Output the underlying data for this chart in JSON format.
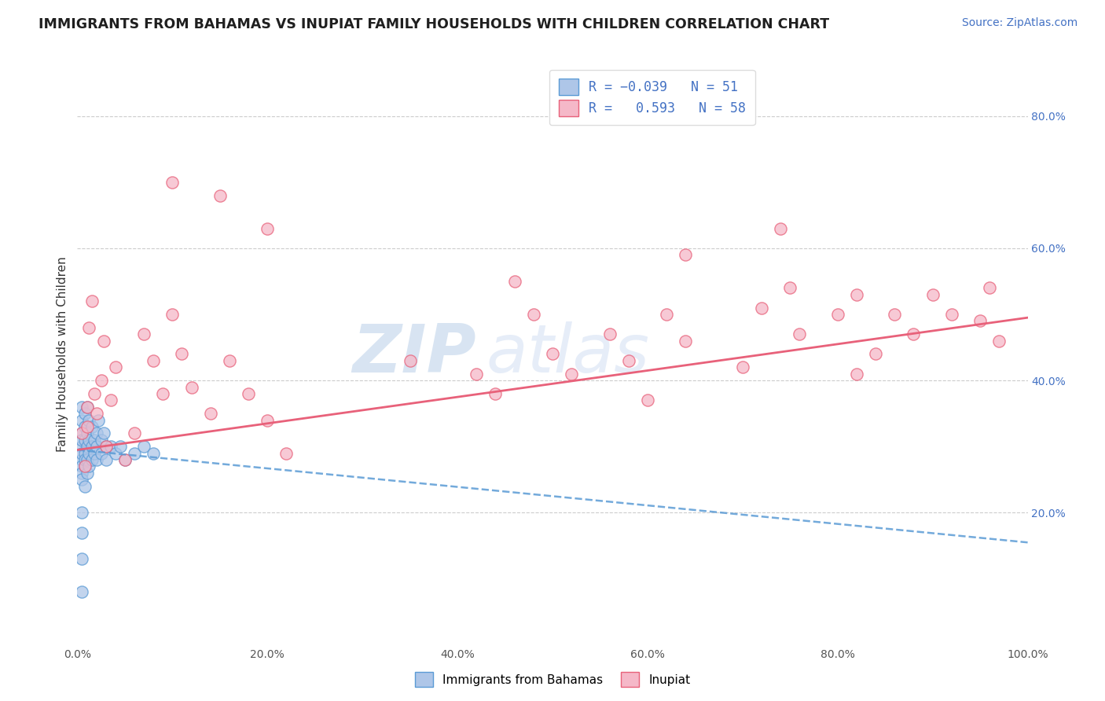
{
  "title": "IMMIGRANTS FROM BAHAMAS VS INUPIAT FAMILY HOUSEHOLDS WITH CHILDREN CORRELATION CHART",
  "source_text": "Source: ZipAtlas.com",
  "ylabel": "Family Households with Children",
  "xmin": 0.0,
  "xmax": 1.0,
  "ymin": 0.0,
  "ymax": 0.88,
  "xtick_labels": [
    "0.0%",
    "20.0%",
    "40.0%",
    "60.0%",
    "80.0%",
    "100.0%"
  ],
  "xtick_vals": [
    0.0,
    0.2,
    0.4,
    0.6,
    0.8,
    1.0
  ],
  "ytick_labels": [
    "20.0%",
    "40.0%",
    "60.0%",
    "80.0%"
  ],
  "ytick_vals": [
    0.2,
    0.4,
    0.6,
    0.8
  ],
  "watermark_zip": "ZIP",
  "watermark_atlas": "atlas",
  "series1_color": "#aec6e8",
  "series2_color": "#f5b8c8",
  "line1_color": "#5b9bd5",
  "line2_color": "#e8617a",
  "background_color": "#ffffff",
  "title_color": "#1f1f1f",
  "title_fontsize": 12.5,
  "source_fontsize": 10,
  "axis_label_fontsize": 11,
  "series1_x": [
    0.005,
    0.005,
    0.005,
    0.005,
    0.005,
    0.005,
    0.005,
    0.005,
    0.005,
    0.005,
    0.008,
    0.008,
    0.008,
    0.008,
    0.008,
    0.008,
    0.008,
    0.01,
    0.01,
    0.01,
    0.01,
    0.01,
    0.012,
    0.012,
    0.012,
    0.012,
    0.015,
    0.015,
    0.015,
    0.018,
    0.018,
    0.02,
    0.02,
    0.02,
    0.022,
    0.025,
    0.025,
    0.028,
    0.03,
    0.03,
    0.035,
    0.04,
    0.045,
    0.05,
    0.06,
    0.07,
    0.08,
    0.005,
    0.005,
    0.005,
    0.005
  ],
  "series1_y": [
    0.3,
    0.32,
    0.28,
    0.34,
    0.36,
    0.31,
    0.27,
    0.26,
    0.29,
    0.25,
    0.33,
    0.31,
    0.29,
    0.27,
    0.35,
    0.28,
    0.24,
    0.32,
    0.3,
    0.28,
    0.26,
    0.36,
    0.31,
    0.29,
    0.34,
    0.27,
    0.3,
    0.28,
    0.33,
    0.31,
    0.29,
    0.32,
    0.3,
    0.28,
    0.34,
    0.31,
    0.29,
    0.32,
    0.3,
    0.28,
    0.3,
    0.29,
    0.3,
    0.28,
    0.29,
    0.3,
    0.29,
    0.2,
    0.17,
    0.13,
    0.08
  ],
  "series2_x": [
    0.005,
    0.008,
    0.01,
    0.01,
    0.012,
    0.015,
    0.018,
    0.02,
    0.025,
    0.028,
    0.03,
    0.035,
    0.04,
    0.05,
    0.06,
    0.07,
    0.08,
    0.09,
    0.1,
    0.11,
    0.12,
    0.14,
    0.16,
    0.18,
    0.2,
    0.22,
    0.35,
    0.42,
    0.44,
    0.46,
    0.48,
    0.5,
    0.52,
    0.56,
    0.58,
    0.6,
    0.62,
    0.64,
    0.7,
    0.72,
    0.75,
    0.76,
    0.8,
    0.82,
    0.84,
    0.86,
    0.88,
    0.9,
    0.92,
    0.95,
    0.96,
    0.97,
    0.1,
    0.15,
    0.2,
    0.64,
    0.74,
    0.82
  ],
  "series2_y": [
    0.32,
    0.27,
    0.36,
    0.33,
    0.48,
    0.52,
    0.38,
    0.35,
    0.4,
    0.46,
    0.3,
    0.37,
    0.42,
    0.28,
    0.32,
    0.47,
    0.43,
    0.38,
    0.5,
    0.44,
    0.39,
    0.35,
    0.43,
    0.38,
    0.34,
    0.29,
    0.43,
    0.41,
    0.38,
    0.55,
    0.5,
    0.44,
    0.41,
    0.47,
    0.43,
    0.37,
    0.5,
    0.46,
    0.42,
    0.51,
    0.54,
    0.47,
    0.5,
    0.53,
    0.44,
    0.5,
    0.47,
    0.53,
    0.5,
    0.49,
    0.54,
    0.46,
    0.7,
    0.68,
    0.63,
    0.59,
    0.63,
    0.41
  ],
  "line1_x0": 0.0,
  "line1_y0": 0.295,
  "line1_x1": 1.0,
  "line1_y1": 0.155,
  "line2_x0": 0.0,
  "line2_y0": 0.295,
  "line2_x1": 1.0,
  "line2_y1": 0.495
}
